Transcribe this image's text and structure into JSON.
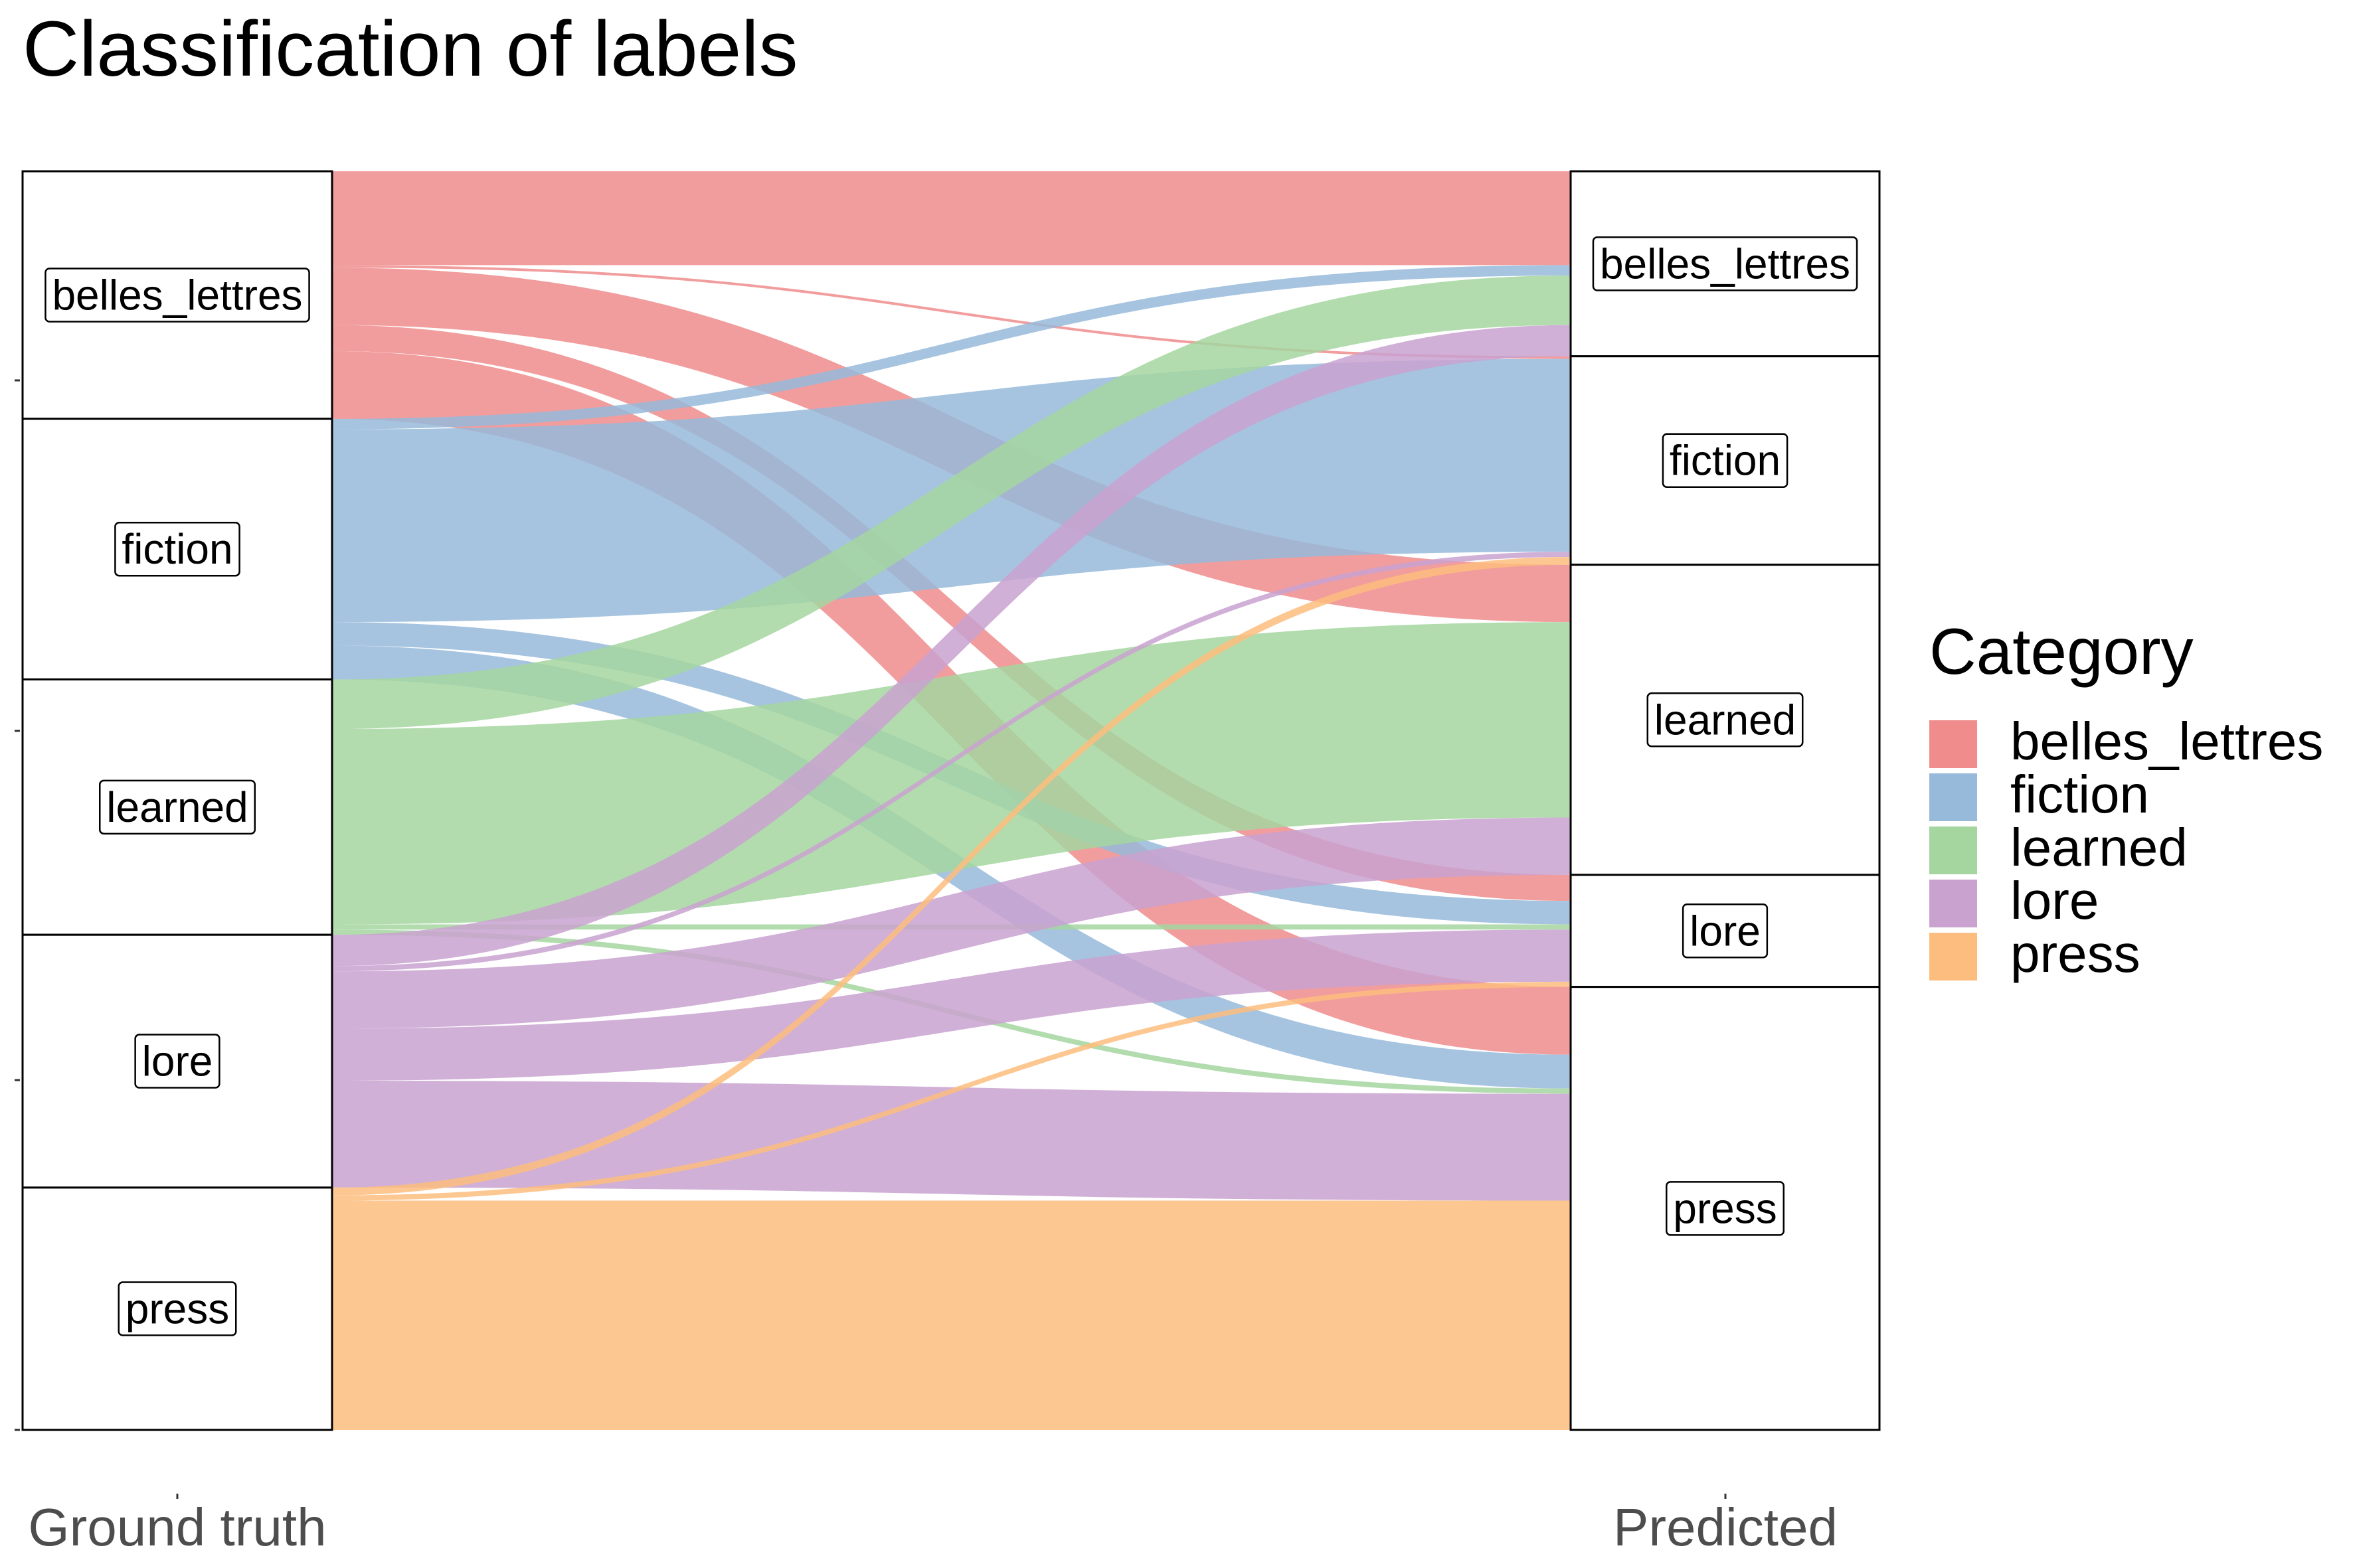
{
  "chart_data": {
    "type": "alluvial",
    "title": "Classification of labels",
    "axes": [
      "Ground truth",
      "Predicted"
    ],
    "legend_title": "Category",
    "legend_position": "right",
    "categories": [
      "belles_lettres",
      "fiction",
      "learned",
      "lore",
      "press"
    ],
    "colors": {
      "belles_lettres": "#F08C8C",
      "fiction": "#97BADB",
      "learned": "#A5D6A0",
      "lore": "#C9A2D0",
      "press": "#FDBD7E"
    },
    "flows": [
      {
        "from": "belles_lettres",
        "to": "belles_lettres",
        "value": 36
      },
      {
        "from": "belles_lettres",
        "to": "fiction",
        "value": 1
      },
      {
        "from": "belles_lettres",
        "to": "learned",
        "value": 22
      },
      {
        "from": "belles_lettres",
        "to": "lore",
        "value": 10
      },
      {
        "from": "belles_lettres",
        "to": "press",
        "value": 26
      },
      {
        "from": "fiction",
        "to": "belles_lettres",
        "value": 4
      },
      {
        "from": "fiction",
        "to": "fiction",
        "value": 74
      },
      {
        "from": "fiction",
        "to": "lore",
        "value": 9
      },
      {
        "from": "fiction",
        "to": "press",
        "value": 13
      },
      {
        "from": "learned",
        "to": "belles_lettres",
        "value": 19
      },
      {
        "from": "learned",
        "to": "learned",
        "value": 75
      },
      {
        "from": "learned",
        "to": "lore",
        "value": 2
      },
      {
        "from": "learned",
        "to": "press",
        "value": 2
      },
      {
        "from": "lore",
        "to": "belles_lettres",
        "value": 12
      },
      {
        "from": "lore",
        "to": "fiction",
        "value": 2
      },
      {
        "from": "lore",
        "to": "learned",
        "value": 22
      },
      {
        "from": "lore",
        "to": "lore",
        "value": 20
      },
      {
        "from": "lore",
        "to": "press",
        "value": 41
      },
      {
        "from": "press",
        "to": "fiction",
        "value": 3
      },
      {
        "from": "press",
        "to": "lore",
        "value": 2
      },
      {
        "from": "press",
        "to": "press",
        "value": 88
      }
    ]
  }
}
